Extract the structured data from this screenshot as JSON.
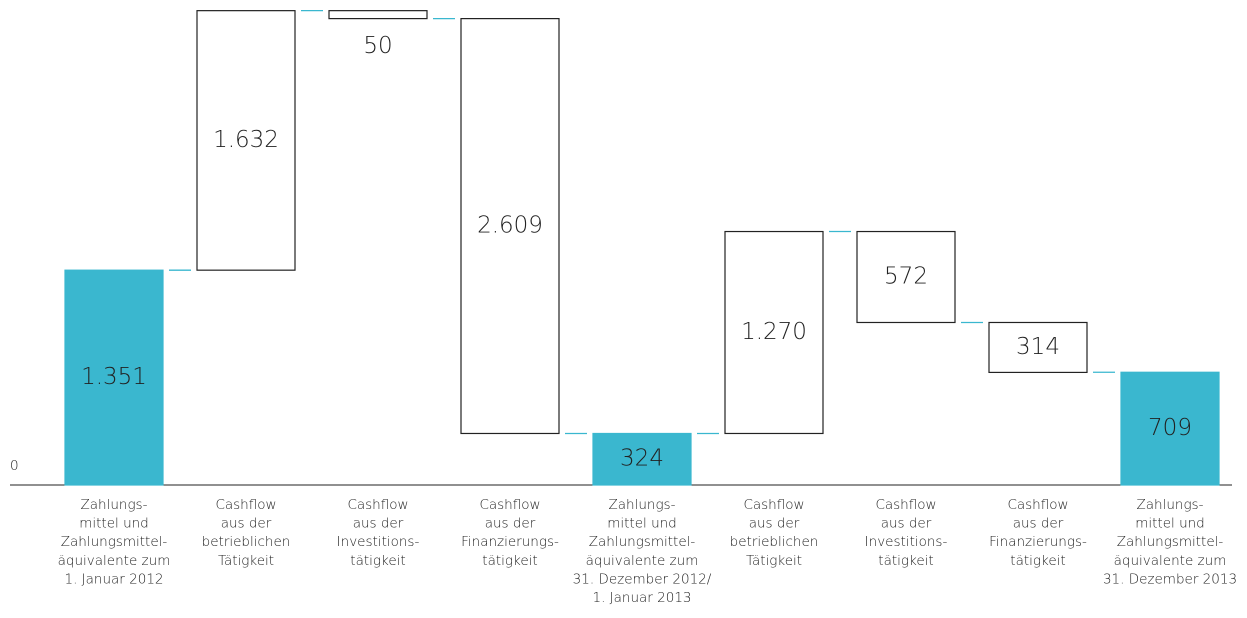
{
  "chart_data": {
    "type": "waterfall",
    "categories": [
      [
        "Zahlungs-",
        "mittel und",
        "Zahlungsmittel-",
        "äquivalente zum",
        "1. Januar 2012"
      ],
      [
        "Cashflow",
        "aus der",
        "betrieblichen",
        "Tätigkeit"
      ],
      [
        "Cashflow",
        "aus der",
        "Investitions-",
        "tätigkeit"
      ],
      [
        "Cashflow",
        "aus der",
        "Finanzierungs-",
        "tätigkeit"
      ],
      [
        "Zahlungs-",
        "mittel und",
        "Zahlungsmittel-",
        "äquivalente zum",
        "31. Dezember 2012/",
        "1. Januar 2013"
      ],
      [
        "Cashflow",
        "aus der",
        "betrieblichen",
        "Tätigkeit"
      ],
      [
        "Cashflow",
        "aus der",
        "Investitions-",
        "tätigkeit"
      ],
      [
        "Cashflow",
        "aus der",
        "Finanzierungs-",
        "tätigkeit"
      ],
      [
        "Zahlungs-",
        "mittel und",
        "Zahlungsmittel-",
        "äquivalente zum",
        "31. Dezember 2013"
      ]
    ],
    "values": [
      1351,
      1632,
      -50,
      -2609,
      324,
      1270,
      -572,
      -314,
      709
    ],
    "value_labels": [
      "1.351",
      "1.632",
      "50",
      "2.609",
      "324",
      "1.270",
      "572",
      "314",
      "709"
    ],
    "measure": [
      "total",
      "relative",
      "relative",
      "relative",
      "total",
      "relative",
      "relative",
      "relative",
      "total"
    ],
    "total_color": "#3ab7cf",
    "relative_color": "#ffffff",
    "ylim": [
      0,
      3050
    ],
    "yticks": [
      0
    ]
  }
}
